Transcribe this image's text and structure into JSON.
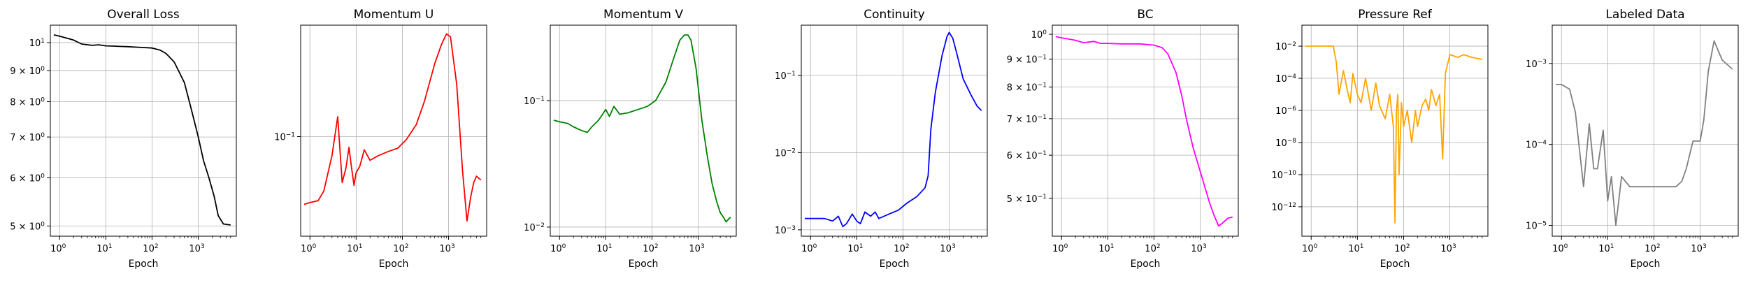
{
  "xlabel": "Epoch",
  "chart_data": [
    {
      "type": "line",
      "title": "Overall Loss",
      "xlabel": "Epoch",
      "color": "#000000",
      "xscale": "log",
      "yscale": "log",
      "xlim": [
        0.7,
        6000
      ],
      "ylim": [
        4.85,
        10.6
      ],
      "xticks": [
        {
          "label": "10",
          "exp": "0"
        },
        {
          "label": "10",
          "exp": "1"
        },
        {
          "label": "10",
          "exp": "2"
        },
        {
          "label": "10",
          "exp": "3"
        }
      ],
      "yticks": [
        {
          "label": "5 × 10",
          "exp": "0",
          "value": 5
        },
        {
          "label": "6 × 10",
          "exp": "0",
          "value": 6
        },
        {
          "label": "7 × 10",
          "exp": "0",
          "value": 7
        },
        {
          "label": "8 × 10",
          "exp": "0",
          "value": 8
        },
        {
          "label": "9 × 10",
          "exp": "0",
          "value": 9
        },
        {
          "label": "10",
          "exp": "1",
          "value": 10
        }
      ],
      "grid": true,
      "x": [
        0.75,
        1,
        2,
        3,
        5,
        7,
        10,
        15,
        20,
        30,
        50,
        100,
        150,
        200,
        300,
        500,
        700,
        1000,
        1300,
        1700,
        2200,
        2700,
        3500,
        5000
      ],
      "y": [
        10.3,
        10.25,
        10.1,
        9.95,
        9.9,
        9.92,
        9.88,
        9.87,
        9.86,
        9.85,
        9.83,
        9.8,
        9.72,
        9.6,
        9.3,
        8.6,
        7.8,
        7.0,
        6.4,
        6.0,
        5.6,
        5.2,
        5.04,
        5.02
      ]
    },
    {
      "type": "line",
      "title": "Momentum U",
      "xlabel": "Epoch",
      "color": "#ff0000",
      "xscale": "log",
      "yscale": "log",
      "xlim": [
        0.7,
        6000
      ],
      "ylim": [
        0.023,
        0.52
      ],
      "xticks": [
        {
          "label": "10",
          "exp": "0"
        },
        {
          "label": "10",
          "exp": "1"
        },
        {
          "label": "10",
          "exp": "2"
        },
        {
          "label": "10",
          "exp": "3"
        }
      ],
      "yticks": [
        {
          "label": "10",
          "exp": "−1",
          "value": 0.1
        }
      ],
      "grid": true,
      "x": [
        0.75,
        1,
        1.5,
        2,
        3,
        4,
        5,
        6,
        7,
        8,
        9,
        10,
        12,
        15,
        20,
        30,
        50,
        80,
        120,
        200,
        300,
        500,
        700,
        900,
        1100,
        1500,
        2000,
        2500,
        3000,
        3500,
        4000,
        5000
      ],
      "y": [
        0.036,
        0.037,
        0.038,
        0.044,
        0.075,
        0.135,
        0.05,
        0.062,
        0.085,
        0.062,
        0.048,
        0.058,
        0.064,
        0.082,
        0.07,
        0.075,
        0.08,
        0.084,
        0.095,
        0.12,
        0.17,
        0.3,
        0.4,
        0.47,
        0.45,
        0.22,
        0.06,
        0.028,
        0.04,
        0.05,
        0.055,
        0.052
      ]
    },
    {
      "type": "line",
      "title": "Momentum V",
      "xlabel": "Epoch",
      "color": "#008000",
      "xscale": "log",
      "yscale": "log",
      "xlim": [
        0.7,
        6000
      ],
      "ylim": [
        0.0088,
        0.38
      ],
      "xticks": [
        {
          "label": "10",
          "exp": "0"
        },
        {
          "label": "10",
          "exp": "1"
        },
        {
          "label": "10",
          "exp": "2"
        },
        {
          "label": "10",
          "exp": "3"
        }
      ],
      "yticks": [
        {
          "label": "10",
          "exp": "−2",
          "value": 0.01
        },
        {
          "label": "10",
          "exp": "−1",
          "value": 0.1
        }
      ],
      "grid": true,
      "x": [
        0.75,
        1,
        1.5,
        2,
        3,
        4,
        5,
        7,
        10,
        12,
        15,
        20,
        30,
        50,
        80,
        120,
        200,
        300,
        400,
        500,
        600,
        700,
        900,
        1200,
        1600,
        2000,
        2500,
        3000,
        3500,
        4000,
        5000
      ],
      "y": [
        0.07,
        0.068,
        0.066,
        0.062,
        0.058,
        0.056,
        0.062,
        0.07,
        0.085,
        0.075,
        0.09,
        0.078,
        0.08,
        0.085,
        0.09,
        0.1,
        0.14,
        0.22,
        0.3,
        0.33,
        0.33,
        0.3,
        0.18,
        0.07,
        0.035,
        0.022,
        0.016,
        0.013,
        0.012,
        0.011,
        0.012
      ]
    },
    {
      "type": "line",
      "title": "Continuity",
      "xlabel": "Epoch",
      "color": "#0000ff",
      "xscale": "log",
      "yscale": "log",
      "xlim": [
        0.7,
        6000
      ],
      "ylim": [
        0.00088,
        0.42
      ],
      "xticks": [
        {
          "label": "10",
          "exp": "0"
        },
        {
          "label": "10",
          "exp": "1"
        },
        {
          "label": "10",
          "exp": "2"
        },
        {
          "label": "10",
          "exp": "3"
        }
      ],
      "yticks": [
        {
          "label": "10",
          "exp": "−3",
          "value": 0.001
        },
        {
          "label": "10",
          "exp": "−2",
          "value": 0.01
        },
        {
          "label": "10",
          "exp": "−1",
          "value": 0.1
        }
      ],
      "grid": true,
      "x": [
        0.75,
        1,
        2,
        3,
        4,
        5,
        6,
        8,
        10,
        12,
        15,
        20,
        25,
        30,
        50,
        80,
        120,
        200,
        300,
        350,
        400,
        500,
        700,
        900,
        1000,
        1200,
        1500,
        2000,
        3000,
        4000,
        5000
      ],
      "y": [
        0.0014,
        0.0014,
        0.0014,
        0.0013,
        0.0015,
        0.0011,
        0.0012,
        0.0016,
        0.0013,
        0.0012,
        0.0017,
        0.0015,
        0.0017,
        0.0014,
        0.0016,
        0.0018,
        0.0022,
        0.0027,
        0.0035,
        0.005,
        0.02,
        0.06,
        0.18,
        0.32,
        0.36,
        0.3,
        0.18,
        0.09,
        0.055,
        0.04,
        0.035
      ]
    },
    {
      "type": "line",
      "title": "BC",
      "xlabel": "Epoch",
      "color": "#ff00ff",
      "xscale": "log",
      "yscale": "log",
      "xlim": [
        0.7,
        6000
      ],
      "ylim": [
        0.43,
        1.03
      ],
      "xticks": [
        {
          "label": "10",
          "exp": "0"
        },
        {
          "label": "10",
          "exp": "1"
        },
        {
          "label": "10",
          "exp": "2"
        },
        {
          "label": "10",
          "exp": "3"
        }
      ],
      "yticks": [
        {
          "label": "5 × 10",
          "exp": "−1",
          "value": 0.5
        },
        {
          "label": "6 × 10",
          "exp": "−1",
          "value": 0.6
        },
        {
          "label": "7 × 10",
          "exp": "−1",
          "value": 0.7
        },
        {
          "label": "8 × 10",
          "exp": "−1",
          "value": 0.8
        },
        {
          "label": "9 × 10",
          "exp": "−1",
          "value": 0.9
        },
        {
          "label": "10",
          "exp": "0",
          "value": 1.0
        }
      ],
      "grid": true,
      "x": [
        0.75,
        1,
        2,
        3,
        5,
        7,
        10,
        20,
        50,
        100,
        150,
        200,
        300,
        400,
        500,
        700,
        1000,
        1300,
        1600,
        2000,
        2500,
        3000,
        4000,
        5000
      ],
      "y": [
        0.99,
        0.985,
        0.975,
        0.965,
        0.97,
        0.962,
        0.962,
        0.96,
        0.96,
        0.955,
        0.945,
        0.92,
        0.85,
        0.77,
        0.7,
        0.62,
        0.56,
        0.52,
        0.49,
        0.465,
        0.445,
        0.45,
        0.46,
        0.462
      ]
    },
    {
      "type": "line",
      "title": "Pressure Ref",
      "xlabel": "Epoch",
      "color": "#ffa500",
      "xscale": "log",
      "yscale": "log",
      "xlim": [
        0.7,
        6000
      ],
      "ylim": [
        2e-14,
        0.15
      ],
      "xticks": [
        {
          "label": "10",
          "exp": "0"
        },
        {
          "label": "10",
          "exp": "1"
        },
        {
          "label": "10",
          "exp": "2"
        },
        {
          "label": "10",
          "exp": "3"
        }
      ],
      "yticks": [
        {
          "label": "10",
          "exp": "−12",
          "value": 1e-12
        },
        {
          "label": "10",
          "exp": "−10",
          "value": 1e-10
        },
        {
          "label": "10",
          "exp": "−8",
          "value": 1e-08
        },
        {
          "label": "10",
          "exp": "−6",
          "value": 1e-06
        },
        {
          "label": "10",
          "exp": "−4",
          "value": 0.0001
        },
        {
          "label": "10",
          "exp": "−2",
          "value": 0.01
        }
      ],
      "grid": true,
      "x": [
        0.75,
        1,
        1.5,
        2,
        2.5,
        3,
        3.5,
        4,
        5,
        6,
        7,
        8,
        10,
        12,
        15,
        20,
        25,
        30,
        40,
        50,
        60,
        65,
        70,
        75,
        80,
        90,
        100,
        120,
        150,
        180,
        200,
        250,
        300,
        350,
        400,
        500,
        600,
        700,
        800,
        1000,
        1500,
        2000,
        3000,
        5000
      ],
      "y": [
        0.01,
        0.01,
        0.01,
        0.01,
        0.01,
        0.01,
        0.001,
        1e-05,
        0.0003,
        2e-05,
        3e-06,
        0.0002,
        1e-05,
        3e-06,
        0.0001,
        1e-06,
        5e-05,
        2e-06,
        3e-07,
        1e-05,
        1e-07,
        1e-13,
        1e-06,
        1e-05,
        1e-10,
        3e-06,
        1e-07,
        1e-06,
        1e-08,
        1e-06,
        1e-07,
        2e-06,
        5e-06,
        1e-06,
        2e-05,
        2e-06,
        1e-05,
        1e-09,
        0.0002,
        0.003,
        0.002,
        0.003,
        0.002,
        0.0015
      ]
    },
    {
      "type": "line",
      "title": "Labeled Data",
      "xlabel": "Epoch",
      "color": "#808080",
      "xscale": "log",
      "yscale": "log",
      "xlim": [
        0.7,
        6000
      ],
      "ylim": [
        7.8e-06,
        0.0028
      ],
      "xticks": [
        {
          "label": "10",
          "exp": "0"
        },
        {
          "label": "10",
          "exp": "1"
        },
        {
          "label": "10",
          "exp": "2"
        },
        {
          "label": "10",
          "exp": "3"
        }
      ],
      "yticks": [
        {
          "label": "10",
          "exp": "−5",
          "value": 1e-05
        },
        {
          "label": "10",
          "exp": "−4",
          "value": 0.0001
        },
        {
          "label": "10",
          "exp": "−3",
          "value": 0.001
        }
      ],
      "grid": true,
      "x": [
        0.75,
        1,
        1.5,
        2,
        3,
        4,
        5,
        6,
        8,
        10,
        12,
        15,
        20,
        30,
        50,
        80,
        100,
        150,
        200,
        300,
        400,
        500,
        700,
        900,
        1000,
        1200,
        1500,
        2000,
        3000,
        5000
      ],
      "y": [
        0.00055,
        0.00055,
        0.00048,
        0.00025,
        3e-05,
        0.00018,
        5e-05,
        5e-05,
        0.00015,
        2e-05,
        4e-05,
        1e-05,
        4e-05,
        3e-05,
        3e-05,
        3e-05,
        3e-05,
        3e-05,
        3e-05,
        3e-05,
        3.5e-05,
        5e-05,
        0.00011,
        0.00011,
        0.00011,
        0.0002,
        0.0008,
        0.0019,
        0.0011,
        0.00085
      ]
    }
  ]
}
